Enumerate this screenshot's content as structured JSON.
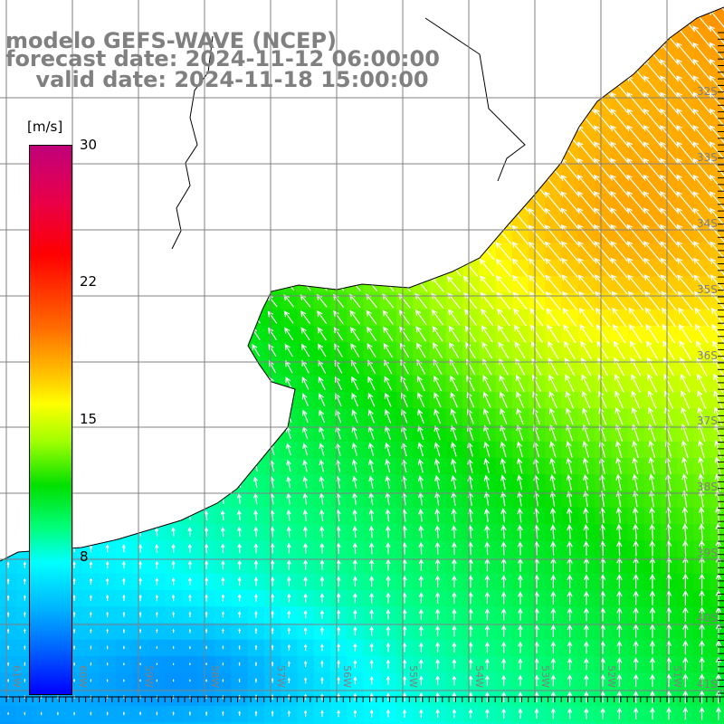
{
  "title": {
    "line1": "modelo GEFS-WAVE (NCEP)",
    "line2": "forecast date: 2024-11-12 06:00:00",
    "line3": "    valid date: 2024-11-18 15:00:00"
  },
  "colorbar": {
    "units": "[m/s]",
    "ticks": [
      {
        "value": 30,
        "label": "30"
      },
      {
        "value": 22,
        "label": "22"
      },
      {
        "value": 15,
        "label": "15"
      },
      {
        "value": 8,
        "label": "8"
      }
    ],
    "min": 0,
    "max": 30
  },
  "axes": {
    "lon_labels": [
      "61W",
      "60W",
      "59W",
      "58W",
      "57W",
      "56W",
      "55W",
      "54W",
      "53W",
      "52W",
      "51W"
    ],
    "lat_labels": [
      "32S",
      "33S",
      "34S",
      "35S",
      "36S",
      "37S",
      "38S",
      "39S",
      "40S",
      "41S"
    ]
  },
  "colors": {
    "grid": "#808080",
    "label": "#808080",
    "arrow": "#ffffff",
    "land": "#ffffff"
  }
}
